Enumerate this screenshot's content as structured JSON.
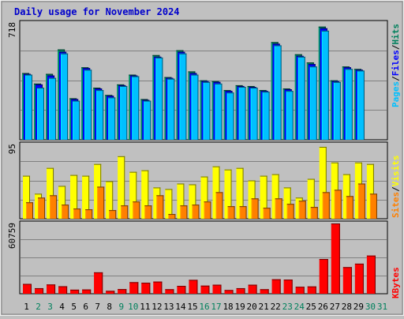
{
  "title": "Daily usage for November 2024",
  "colors": {
    "background": "#c0c0c0",
    "panel": "#c0c0c0",
    "grid": "#808080",
    "title": "#0000cc",
    "hits": "#00805c",
    "files": "#0000ff",
    "pages": "#00c0ff",
    "visits": "#ffff00",
    "sites": "#ff8000",
    "kbytes": "#ff0000",
    "weekend_label": "#00805c",
    "weekday_label": "#000000"
  },
  "legend": {
    "top": [
      {
        "text": "Pages",
        "color": "#00c0ff"
      },
      {
        "text": "/",
        "color": "#000000"
      },
      {
        "text": "Files",
        "color": "#0000ff"
      },
      {
        "text": "/",
        "color": "#000000"
      },
      {
        "text": "Hits",
        "color": "#00805c"
      }
    ],
    "middle": [
      {
        "text": "Sites",
        "color": "#ff8000"
      },
      {
        "text": "/",
        "color": "#000000"
      },
      {
        "text": "Visits",
        "color": "#ffff00"
      }
    ],
    "bottom": [
      {
        "text": "KBytes",
        "color": "#ff0000"
      }
    ]
  },
  "chart_data": [
    {
      "type": "bar",
      "panel": "hits-files-pages",
      "ymax_label": "718",
      "ylim": [
        0,
        718
      ],
      "categories": [
        "1",
        "2",
        "3",
        "4",
        "5",
        "6",
        "7",
        "8",
        "9",
        "10",
        "11",
        "12",
        "13",
        "14",
        "15",
        "16",
        "17",
        "18",
        "19",
        "20",
        "21",
        "22",
        "23",
        "24",
        "25",
        "26",
        "27",
        "28",
        "29",
        "30",
        "31"
      ],
      "weekend": [
        false,
        true,
        true,
        false,
        false,
        false,
        false,
        false,
        true,
        true,
        false,
        false,
        false,
        false,
        false,
        true,
        true,
        false,
        false,
        false,
        false,
        false,
        true,
        true,
        false,
        false,
        false,
        false,
        false,
        true,
        true
      ],
      "series": [
        {
          "name": "Hits",
          "values": [
            410,
            345,
            405,
            555,
            255,
            445,
            320,
            275,
            340,
            400,
            250,
            520,
            385,
            550,
            420,
            365,
            360,
            305,
            335,
            330,
            305,
            600,
            315,
            525,
            475,
            695,
            365,
            450,
            435,
            null,
            null
          ]
        },
        {
          "name": "Files",
          "values": [
            405,
            340,
            395,
            540,
            250,
            440,
            315,
            270,
            335,
            395,
            245,
            510,
            380,
            540,
            410,
            360,
            355,
            300,
            330,
            325,
            300,
            590,
            310,
            515,
            465,
            685,
            360,
            445,
            430,
            null,
            null
          ]
        },
        {
          "name": "Pages",
          "values": [
            400,
            320,
            380,
            530,
            240,
            430,
            305,
            260,
            330,
            390,
            240,
            505,
            375,
            530,
            400,
            355,
            345,
            290,
            325,
            320,
            295,
            580,
            300,
            510,
            450,
            670,
            355,
            435,
            425,
            null,
            null
          ]
        }
      ]
    },
    {
      "type": "bar",
      "panel": "visits-sites",
      "ymax_label": "95",
      "ylim": [
        0,
        95
      ],
      "categories": [
        "1",
        "2",
        "3",
        "4",
        "5",
        "6",
        "7",
        "8",
        "9",
        "10",
        "11",
        "12",
        "13",
        "14",
        "15",
        "16",
        "17",
        "18",
        "19",
        "20",
        "21",
        "22",
        "23",
        "24",
        "25",
        "26",
        "27",
        "28",
        "29",
        "30",
        "31"
      ],
      "series": [
        {
          "name": "Visits",
          "values": [
            55,
            32,
            65,
            42,
            56,
            55,
            70,
            48,
            80,
            60,
            62,
            40,
            38,
            45,
            44,
            54,
            67,
            63,
            65,
            49,
            55,
            57,
            40,
            27,
            51,
            92,
            72,
            57,
            72,
            70,
            null
          ]
        },
        {
          "name": "Sites",
          "values": [
            21,
            27,
            30,
            18,
            13,
            12,
            41,
            11,
            17,
            22,
            17,
            30,
            6,
            17,
            18,
            22,
            34,
            16,
            16,
            26,
            14,
            26,
            19,
            23,
            15,
            34,
            37,
            29,
            45,
            32,
            null
          ]
        }
      ]
    },
    {
      "type": "bar",
      "panel": "kbytes",
      "ymax_label": "60759",
      "ylim": [
        0,
        60759
      ],
      "categories": [
        "1",
        "2",
        "3",
        "4",
        "5",
        "6",
        "7",
        "8",
        "9",
        "10",
        "11",
        "12",
        "13",
        "14",
        "15",
        "16",
        "17",
        "18",
        "19",
        "20",
        "21",
        "22",
        "23",
        "24",
        "25",
        "26",
        "27",
        "28",
        "29",
        "30",
        "31"
      ],
      "series": [
        {
          "name": "KBytes",
          "values": [
            8500,
            4800,
            8000,
            6500,
            3500,
            3700,
            18500,
            2500,
            4000,
            10000,
            9500,
            10500,
            3900,
            6800,
            12000,
            7000,
            7800,
            3200,
            4800,
            7800,
            3900,
            12500,
            12200,
            6000,
            6300,
            30000,
            60759,
            23000,
            26000,
            33000,
            null
          ]
        }
      ]
    }
  ]
}
